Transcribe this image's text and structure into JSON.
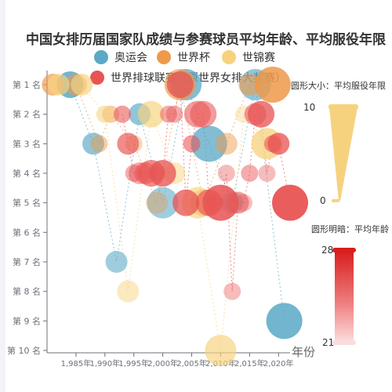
{
  "title": "中国女排历届国家队成绩与参赛球员平均年龄、平均服役年限",
  "legend": [
    {
      "name": "奥运会",
      "color": "#5ba9c7"
    },
    {
      "name": "世界杯",
      "color": "#ee9a4a"
    },
    {
      "name": "世锦赛",
      "color": "#f7d27e"
    },
    {
      "name": "世界排球联赛（原世界女排大奖赛）",
      "color": "#e85454"
    }
  ],
  "visual_map_size": {
    "title": "圆形大小：平均服役年限",
    "max": "10",
    "min": "0"
  },
  "visual_map_color": {
    "title": "圆形明暗：平均年龄",
    "max": "28",
    "min": "21"
  },
  "chart_data": {
    "type": "scatter",
    "title": "中国女排历届国家队成绩与参赛球员平均年龄、平均服役年限",
    "xlabel": "年份",
    "ylabel": "",
    "xlim": [
      1980,
      2022
    ],
    "x_ticks": [
      "1,985年",
      "1,990年",
      "1,995年",
      "2,000年",
      "2,005年",
      "2,010年",
      "2,015年",
      "2,020年"
    ],
    "y_ticks": [
      "第 1 名",
      "第 2 名",
      "第 3 名",
      "第 4 名",
      "第 5 名",
      "第 6 名",
      "第 7 名",
      "第 8 名",
      "第 9 名",
      "第 10 名"
    ],
    "ylim": [
      1,
      10
    ],
    "size_range": [
      0,
      10
    ],
    "color_range": [
      21,
      28
    ],
    "series": [
      {
        "name": "奥运会",
        "color": "#5ba9c7",
        "points": [
          [
            1984,
            1,
            4,
            27
          ],
          [
            1988,
            3,
            3,
            25
          ],
          [
            1992,
            7,
            3,
            24
          ],
          [
            1996,
            2,
            3,
            25
          ],
          [
            2000,
            5,
            5,
            24
          ],
          [
            2004,
            1,
            5,
            26
          ],
          [
            2008,
            3,
            6,
            26
          ],
          [
            2012,
            5,
            3,
            23
          ],
          [
            2016,
            1,
            5,
            25
          ],
          [
            2021,
            9,
            6,
            27
          ]
        ]
      },
      {
        "name": "世界杯",
        "color": "#ee9a4a",
        "points": [
          [
            1981,
            1,
            3,
            25
          ],
          [
            1985,
            1,
            3,
            24
          ],
          [
            1989,
            3,
            2,
            23
          ],
          [
            1991,
            2,
            2,
            23
          ],
          [
            1995,
            3,
            2,
            22
          ],
          [
            1999,
            5,
            3,
            22
          ],
          [
            2003,
            1,
            5,
            25
          ],
          [
            2007,
            5,
            4,
            24
          ],
          [
            2011,
            3,
            3,
            23
          ],
          [
            2015,
            1,
            3,
            24
          ],
          [
            2019,
            1,
            6,
            27
          ]
        ]
      },
      {
        "name": "世锦赛",
        "color": "#f7d27e",
        "points": [
          [
            1982,
            1,
            3,
            25
          ],
          [
            1986,
            1,
            3,
            25
          ],
          [
            1990,
            2,
            2,
            24
          ],
          [
            1994,
            8,
            3,
            23
          ],
          [
            1998,
            2,
            4,
            25
          ],
          [
            2002,
            4,
            3,
            23
          ],
          [
            2006,
            5,
            5,
            25
          ],
          [
            2010,
            10,
            5,
            25
          ],
          [
            2014,
            2,
            2,
            22
          ],
          [
            2018,
            3,
            5,
            26
          ]
        ]
      },
      {
        "name": "世界排球联赛（原世界女排大奖赛）",
        "color": "#e85454",
        "points": [
          [
            1993,
            2,
            2,
            24
          ],
          [
            1994,
            3,
            3,
            25
          ],
          [
            1995,
            4,
            2,
            23
          ],
          [
            1996,
            4,
            3,
            23
          ],
          [
            1997,
            4,
            3,
            24
          ],
          [
            1998,
            4,
            4,
            25
          ],
          [
            1999,
            4,
            2,
            22
          ],
          [
            2000,
            4,
            4,
            26
          ],
          [
            2001,
            2,
            2,
            23
          ],
          [
            2002,
            2,
            2,
            23
          ],
          [
            2003,
            1,
            4,
            26
          ],
          [
            2004,
            5,
            4,
            26
          ],
          [
            2005,
            3,
            2,
            24
          ],
          [
            2006,
            2,
            4,
            24
          ],
          [
            2007,
            2,
            4,
            24
          ],
          [
            2008,
            5,
            4,
            25
          ],
          [
            2009,
            5,
            2,
            22
          ],
          [
            2010,
            5,
            6,
            27
          ],
          [
            2011,
            4,
            2,
            22
          ],
          [
            2012,
            8,
            2,
            22
          ],
          [
            2013,
            5,
            3,
            24
          ],
          [
            2014,
            5,
            2,
            22
          ],
          [
            2015,
            4,
            2,
            23
          ],
          [
            2016,
            2,
            3,
            24
          ],
          [
            2017,
            2,
            4,
            26
          ],
          [
            2018,
            4,
            2,
            22
          ],
          [
            2019,
            3,
            2,
            24
          ],
          [
            2020,
            3,
            3,
            26
          ],
          [
            2022,
            5,
            6,
            28
          ]
        ]
      }
    ]
  }
}
